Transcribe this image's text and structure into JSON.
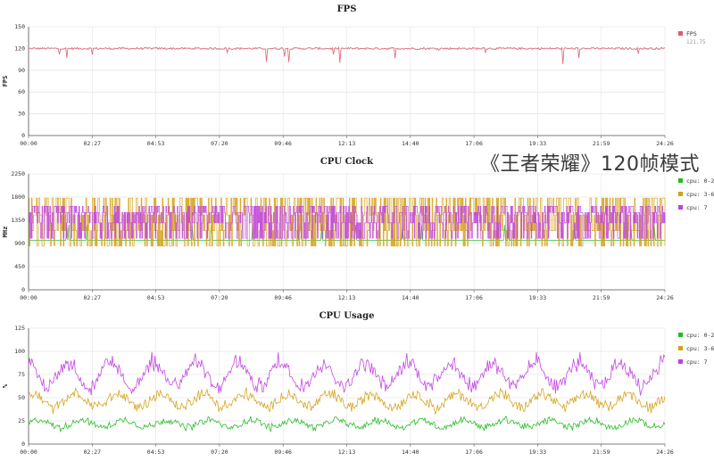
{
  "overlay_text": "《王者荣耀》120帧模式",
  "x_ticks": [
    "00:00",
    "02:27",
    "04:53",
    "07:20",
    "09:46",
    "12:13",
    "14:40",
    "17:06",
    "19:33",
    "21:59",
    "24:26"
  ],
  "chart_data": [
    {
      "type": "line",
      "title": "FPS",
      "ylabel": "FPS",
      "ylim": [
        0,
        150
      ],
      "yticks": [
        0,
        30,
        60,
        90,
        120,
        150
      ],
      "grid": true,
      "legend_position": "right",
      "series": [
        {
          "name": "FPS",
          "avg_label": "121.75",
          "color": "#e05a6a",
          "base": 120,
          "noise": 1.5,
          "dip_rate": 0.025,
          "dip_min": 3,
          "dip_max": 22
        }
      ]
    },
    {
      "type": "line",
      "title": "CPU Clock",
      "ylabel": "MHz",
      "ylim": [
        0,
        2250
      ],
      "yticks": [
        0,
        450,
        900,
        1350,
        1800,
        2250
      ],
      "grid": true,
      "legend_position": "right",
      "series": [
        {
          "name": "cpu: 0-2",
          "color": "#22bb22",
          "mode": "steady",
          "base": 960
        },
        {
          "name": "cpu: 3-6",
          "color": "#d4a017",
          "mode": "square",
          "levels": [
            850,
            1150,
            1450,
            1780
          ]
        },
        {
          "name": "cpu: 7",
          "color": "#c040e0",
          "mode": "square",
          "levels": [
            1000,
            1300,
            1500,
            1620
          ]
        }
      ]
    },
    {
      "type": "line",
      "title": "CPU Usage",
      "ylabel": "%",
      "ylim": [
        0,
        125
      ],
      "yticks": [
        0,
        25,
        50,
        75,
        100,
        125
      ],
      "grid": true,
      "legend_position": "right",
      "series": [
        {
          "name": "cpu: 0-2",
          "color": "#22bb22",
          "base": 22,
          "amp": 4,
          "noise": 3
        },
        {
          "name": "cpu: 3-6",
          "color": "#d4a017",
          "base": 47,
          "amp": 7,
          "noise": 5
        },
        {
          "name": "cpu: 7",
          "color": "#c040e0",
          "base": 75,
          "amp": 13,
          "noise": 6
        }
      ]
    }
  ]
}
